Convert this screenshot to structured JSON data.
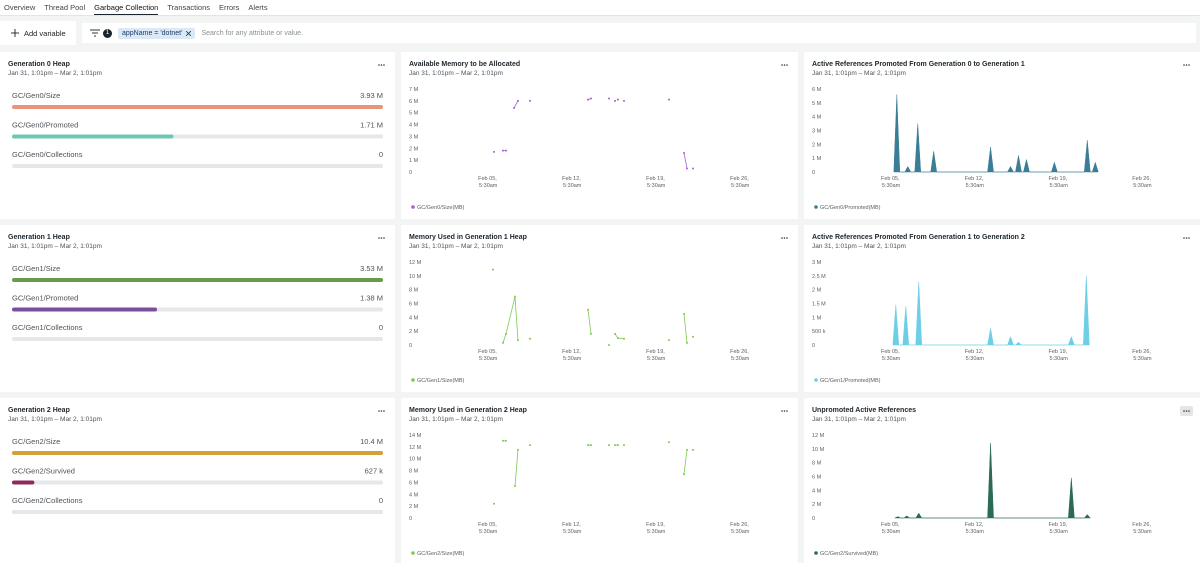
{
  "tabs": [
    "Overview",
    "Thread Pool",
    "Garbage Collection",
    "Transactions",
    "Errors",
    "Alerts"
  ],
  "toolbar": {
    "add_variable": "Add variable",
    "filter_count": 1,
    "filter": "appName = 'dotnet'",
    "search_placeholder": "Search for any attribute or value."
  },
  "gauges": [
    {
      "title": "Generation 0 Heap",
      "subtitle": "Jan 31, 1:01pm – Mar 2, 1:01pm",
      "rows": [
        {
          "label": "GC/Gen0/Size",
          "value": 3930000,
          "value_label": "3.93 M",
          "color": "#e8947a"
        },
        {
          "label": "GC/Gen0/Promoted",
          "value": 1710000,
          "value_label": "1.71 M",
          "color": "#6cc8b6"
        },
        {
          "label": "GC/Gen0/Collections",
          "value": 0,
          "color": "#6cc8b6"
        }
      ]
    },
    {
      "title": "Generation 1 Heap",
      "subtitle": "Jan 31, 1:01pm – Mar 2, 1:01pm",
      "rows": [
        {
          "label": "GC/Gen1/Size",
          "value": 3530000,
          "value_label": "3.53 M",
          "color": "#6a9a4a"
        },
        {
          "label": "GC/Gen1/Promoted",
          "value": 1380000,
          "value_label": "1.38 M",
          "color": "#7a4e9c"
        },
        {
          "label": "GC/Gen1/Collections",
          "value": 0,
          "color": "#7a4e9c"
        }
      ]
    },
    {
      "title": "Generation 2 Heap",
      "subtitle": "Jan 31, 1:01pm – Mar 2, 1:01pm",
      "rows": [
        {
          "label": "GC/Gen2/Size",
          "value": 10400000,
          "value_label": "10.4 M",
          "color": "#d4a038"
        },
        {
          "label": "GC/Gen2/Survived",
          "value": 627000,
          "value_label": "627 k",
          "color": "#8e2a5e"
        },
        {
          "label": "GC/Gen2/Collections",
          "value": 0,
          "color": "#8e2a5e"
        }
      ]
    }
  ],
  "chart_data": [
    {
      "type": "line",
      "title": "Available Memory to be Allocated",
      "subtitle": "Jan 31, 1:01pm – Mar 2, 1:01pm",
      "x": [
        "Feb 05 17:00",
        null,
        "Feb 06 11:00",
        "Feb 06 17:00",
        null,
        "Feb 07 09:00",
        "Feb 07 17:00",
        null,
        "Feb 08 17:00",
        null,
        "Feb 13 13:00",
        "Feb 13 19:00",
        null,
        "Feb 15 07:00",
        null,
        "Feb 15 19:00",
        null,
        "Feb 16 01:00",
        null,
        "Feb 16 13:00",
        null,
        "Feb 20 07:00",
        null,
        "Feb 21 13:00",
        "Feb 21 19:00",
        null,
        "Feb 22 07:00"
      ],
      "series": [
        {
          "name": "GC/Gen0/Size(MB)",
          "color": "#a65fd0",
          "values": [
            1700000,
            null,
            1800000,
            1800000,
            null,
            5400000,
            6000000,
            null,
            6000000,
            null,
            6100000,
            6200000,
            null,
            6200000,
            null,
            6000000,
            null,
            6100000,
            null,
            6000000,
            null,
            6100000,
            null,
            1600000,
            300000,
            null,
            300000
          ]
        }
      ],
      "xlim": [
        "Jan 31 13:01",
        "Mar 02 13:01"
      ],
      "xticks": [
        {
          "value": "Feb 05 05:30",
          "label": "Feb 05, 5:30am"
        },
        {
          "value": "Feb 12 05:30",
          "label": "Feb 12, 5:30am"
        },
        {
          "value": "Feb 19 05:30",
          "label": "Feb 19, 5:30am"
        },
        {
          "value": "Feb 26 05:30",
          "label": "Feb 26, 5:30am"
        }
      ],
      "ylim": [
        0,
        7000000
      ],
      "yticks": [
        0,
        {
          "value": 1000000,
          "label": "1 M"
        },
        {
          "value": 2000000,
          "label": "2 M"
        },
        {
          "value": 3000000,
          "label": "3 M"
        },
        {
          "value": 4000000,
          "label": "4 M"
        },
        {
          "value": 5000000,
          "label": "5 M"
        },
        {
          "value": 6000000,
          "label": "6 M"
        },
        {
          "value": 7000000,
          "label": "7 M"
        }
      ]
    },
    {
      "type": "area",
      "title": "Active References Promoted From Generation 0 to Generation 1",
      "subtitle": "Jan 31, 1:01pm – Mar 2, 1:01pm",
      "x": [
        "Feb 05 11:00",
        "Feb 05 17:00",
        "Feb 05 23:00",
        "Feb 06 09:00",
        "Feb 06 15:00",
        "Feb 06 21:00",
        "Feb 07 05:00",
        "Feb 07 11:00",
        "Feb 07 17:00",
        "Feb 08 13:00",
        "Feb 08 19:00",
        "Feb 09 01:00",
        "Feb 13 07:00",
        "Feb 13 13:00",
        "Feb 13 19:00",
        "Feb 14 23:00",
        "Feb 15 05:00",
        "Feb 15 11:00",
        "Feb 15 15:00",
        "Feb 15 21:00",
        "Feb 16 03:00",
        "Feb 16 07:00",
        "Feb 16 13:00",
        "Feb 16 19:00",
        "Feb 18 15:00",
        "Feb 18 21:00",
        "Feb 19 03:00",
        "Feb 21 09:00",
        "Feb 21 15:00",
        "Feb 21 21:00",
        "Feb 22 01:00",
        "Feb 22 07:00",
        "Feb 22 13:00"
      ],
      "series": [
        {
          "name": "GC/Gen0/Promoted(MB)",
          "color": "#3a7d96",
          "values": [
            0,
            5600000,
            0,
            0,
            400000,
            0,
            0,
            3500000,
            0,
            0,
            1500000,
            0,
            0,
            1800000,
            0,
            0,
            400000,
            0,
            0,
            1200000,
            0,
            0,
            900000,
            0,
            0,
            700000,
            0,
            0,
            2300000,
            0,
            0,
            700000,
            0
          ]
        }
      ],
      "xlim": [
        "Jan 31 13:01",
        "Mar 02 13:01"
      ],
      "xticks": [
        {
          "value": "Feb 05 05:30",
          "label": "Feb 05, 5:30am"
        },
        {
          "value": "Feb 12 05:30",
          "label": "Feb 12, 5:30am"
        },
        {
          "value": "Feb 19 05:30",
          "label": "Feb 19, 5:30am"
        },
        {
          "value": "Feb 26 05:30",
          "label": "Feb 26, 5:30am"
        }
      ],
      "ylim": [
        0,
        6000000
      ],
      "yticks": [
        0,
        {
          "value": 1000000,
          "label": "1 M"
        },
        {
          "value": 2000000,
          "label": "2 M"
        },
        {
          "value": 3000000,
          "label": "3 M"
        },
        {
          "value": 4000000,
          "label": "4 M"
        },
        {
          "value": 5000000,
          "label": "5 M"
        },
        {
          "value": 6000000,
          "label": "6 M"
        }
      ]
    },
    {
      "type": "line",
      "title": "Memory Used in Generation 1 Heap",
      "subtitle": "Jan 31, 1:01pm – Mar 2, 1:01pm",
      "x": [
        "Feb 05 15:00",
        null,
        "Feb 06 11:00",
        "Feb 06 17:00",
        "Feb 07 11:00",
        "Feb 07 17:00",
        null,
        "Feb 08 17:00",
        null,
        "Feb 13 13:00",
        "Feb 13 19:00",
        null,
        "Feb 15 07:00",
        null,
        "Feb 15 19:00",
        "Feb 16 01:00",
        "Feb 16 13:00",
        null,
        "Feb 20 07:00",
        null,
        "Feb 21 13:00",
        "Feb 21 19:00",
        null,
        "Feb 22 07:00"
      ],
      "series": [
        {
          "name": "GC/Gen1/Size(MB)",
          "color": "#7ec850",
          "values": [
            10900000,
            null,
            300000,
            1600000,
            7000000,
            700000,
            null,
            900000,
            null,
            5100000,
            1600000,
            null,
            0,
            null,
            1600000,
            1000000,
            900000,
            null,
            700000,
            null,
            4500000,
            300000,
            null,
            1200000
          ]
        }
      ],
      "xlim": [
        "Jan 31 13:01",
        "Mar 02 13:01"
      ],
      "xticks": [
        {
          "value": "Feb 05 05:30",
          "label": "Feb 05, 5:30am"
        },
        {
          "value": "Feb 12 05:30",
          "label": "Feb 12, 5:30am"
        },
        {
          "value": "Feb 19 05:30",
          "label": "Feb 19, 5:30am"
        },
        {
          "value": "Feb 26 05:30",
          "label": "Feb 26, 5:30am"
        }
      ],
      "ylim": [
        0,
        12000000
      ],
      "yticks": [
        0,
        {
          "value": 2000000,
          "label": "2 M"
        },
        {
          "value": 4000000,
          "label": "4 M"
        },
        {
          "value": 6000000,
          "label": "6 M"
        },
        {
          "value": 8000000,
          "label": "8 M"
        },
        {
          "value": 10000000,
          "label": "10 M"
        },
        {
          "value": 12000000,
          "label": "12 M"
        }
      ]
    },
    {
      "type": "area",
      "title": "Active References Promoted From Generation 1 to Generation 2",
      "subtitle": "Jan 31, 1:01pm – Mar 2, 1:01pm",
      "x": [
        "Feb 05 09:00",
        "Feb 05 15:00",
        "Feb 05 21:00",
        "Feb 06 05:00",
        "Feb 06 11:00",
        "Feb 06 17:00",
        "Feb 07 07:00",
        "Feb 07 13:00",
        "Feb 07 19:00",
        "Feb 13 07:00",
        "Feb 13 13:00",
        "Feb 13 19:00",
        "Feb 14 23:00",
        "Feb 15 05:00",
        "Feb 15 11:00",
        "Feb 15 15:00",
        "Feb 15 21:00",
        "Feb 16 03:00",
        "Feb 20 01:00",
        "Feb 20 07:00",
        "Feb 20 13:00",
        "Feb 21 07:00",
        "Feb 21 13:00",
        "Feb 21 19:00"
      ],
      "series": [
        {
          "name": "GC/Gen1/Promoted(MB)",
          "color": "#6dcfe5",
          "values": [
            0,
            1450000,
            0,
            0,
            1400000,
            0,
            0,
            2300000,
            0,
            0,
            600000,
            0,
            0,
            300000,
            0,
            0,
            100000,
            0,
            0,
            300000,
            0,
            0,
            2500000,
            0
          ]
        }
      ],
      "xlim": [
        "Jan 31 13:01",
        "Mar 02 13:01"
      ],
      "xticks": [
        {
          "value": "Feb 05 05:30",
          "label": "Feb 05, 5:30am"
        },
        {
          "value": "Feb 12 05:30",
          "label": "Feb 12, 5:30am"
        },
        {
          "value": "Feb 19 05:30",
          "label": "Feb 19, 5:30am"
        },
        {
          "value": "Feb 26 05:30",
          "label": "Feb 26, 5:30am"
        }
      ],
      "ylim": [
        0,
        3000000
      ],
      "yticks": [
        0,
        {
          "value": 500000,
          "label": "500 k"
        },
        {
          "value": 1000000,
          "label": "1 M"
        },
        {
          "value": 1500000,
          "label": "1.5 M"
        },
        {
          "value": 2000000,
          "label": "2 M"
        },
        {
          "value": 2500000,
          "label": "2.5 M"
        },
        {
          "value": 3000000,
          "label": "3 M"
        }
      ]
    },
    {
      "type": "line",
      "title": "Memory Used in Generation 2 Heap",
      "subtitle": "Jan 31, 1:01pm – Mar 2, 1:01pm",
      "x": [
        "Feb 05 17:00",
        null,
        "Feb 06 11:00",
        "Feb 06 17:00",
        null,
        "Feb 07 11:00",
        "Feb 07 17:00",
        null,
        "Feb 08 17:00",
        null,
        "Feb 13 13:00",
        "Feb 13 19:00",
        null,
        "Feb 15 07:00",
        null,
        "Feb 15 19:00",
        "Feb 16 01:00",
        null,
        "Feb 16 13:00",
        null,
        "Feb 20 07:00",
        null,
        "Feb 21 13:00",
        "Feb 21 19:00",
        null,
        "Feb 22 07:00"
      ],
      "series": [
        {
          "name": "GC/Gen2/Size(MB)",
          "color": "#7ec850",
          "values": [
            2400000,
            null,
            13000000,
            13000000,
            null,
            5400000,
            11500000,
            null,
            12300000,
            null,
            12300000,
            12300000,
            null,
            12300000,
            null,
            12300000,
            12300000,
            null,
            12300000,
            null,
            12800000,
            null,
            7400000,
            11500000,
            null,
            11500000
          ]
        }
      ],
      "xlim": [
        "Jan 31 13:01",
        "Mar 02 13:01"
      ],
      "xticks": [
        {
          "value": "Feb 05 05:30",
          "label": "Feb 05, 5:30am"
        },
        {
          "value": "Feb 12 05:30",
          "label": "Feb 12, 5:30am"
        },
        {
          "value": "Feb 19 05:30",
          "label": "Feb 19, 5:30am"
        },
        {
          "value": "Feb 26 05:30",
          "label": "Feb 26, 5:30am"
        }
      ],
      "ylim": [
        0,
        14000000
      ],
      "yticks": [
        0,
        {
          "value": 2000000,
          "label": "2 M"
        },
        {
          "value": 4000000,
          "label": "4 M"
        },
        {
          "value": 6000000,
          "label": "6 M"
        },
        {
          "value": 8000000,
          "label": "8 M"
        },
        {
          "value": 10000000,
          "label": "10 M"
        },
        {
          "value": 12000000,
          "label": "12 M"
        },
        {
          "value": 14000000,
          "label": "14 M"
        }
      ]
    },
    {
      "type": "area",
      "title": "Unpromoted Active References",
      "subtitle": "Jan 31, 1:01pm – Mar 2, 1:01pm",
      "x": [
        "Feb 05 13:00",
        "Feb 05 19:00",
        "Feb 06 01:00",
        "Feb 06 07:00",
        "Feb 06 13:00",
        "Feb 06 19:00",
        "Feb 07 07:00",
        "Feb 07 13:00",
        "Feb 07 19:00",
        "Feb 13 07:00",
        "Feb 13 13:00",
        "Feb 13 19:00",
        "Feb 20 01:00",
        "Feb 20 07:00",
        "Feb 20 13:00",
        "Feb 21 09:00",
        "Feb 21 15:00",
        "Feb 21 21:00"
      ],
      "series": [
        {
          "name": "GC/Gen2/Survived(MB)",
          "color": "#2b6b53",
          "values": [
            0,
            200000,
            0,
            0,
            300000,
            0,
            0,
            700000,
            0,
            0,
            10800000,
            0,
            0,
            5800000,
            0,
            0,
            500000,
            0
          ]
        }
      ],
      "xlim": [
        "Jan 31 13:01",
        "Mar 02 13:01"
      ],
      "xticks": [
        {
          "value": "Feb 05 05:30",
          "label": "Feb 05, 5:30am"
        },
        {
          "value": "Feb 12 05:30",
          "label": "Feb 12, 5:30am"
        },
        {
          "value": "Feb 19 05:30",
          "label": "Feb 19, 5:30am"
        },
        {
          "value": "Feb 26 05:30",
          "label": "Feb 26, 5:30am"
        }
      ],
      "ylim": [
        0,
        12000000
      ],
      "yticks": [
        0,
        {
          "value": 2000000,
          "label": "2 M"
        },
        {
          "value": 4000000,
          "label": "4 M"
        },
        {
          "value": 6000000,
          "label": "6 M"
        },
        {
          "value": 8000000,
          "label": "8 M"
        },
        {
          "value": 10000000,
          "label": "10 M"
        },
        {
          "value": 12000000,
          "label": "12 M"
        }
      ]
    }
  ]
}
